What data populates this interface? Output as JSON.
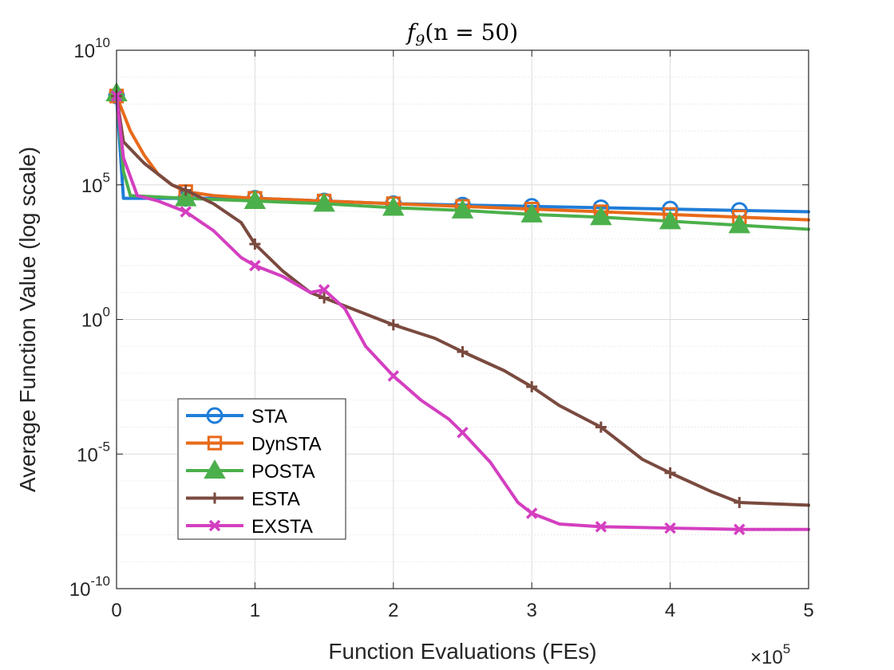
{
  "chart_data": {
    "type": "line",
    "title": "f9(n = 50)",
    "title_parts": {
      "f": "f",
      "sub": "9",
      "rest": "(n = 50)"
    },
    "xlabel": "Function Evaluations (FEs)",
    "ylabel": "Average Function Value (log scale)",
    "x_multiplier": {
      "base": "×10",
      "exp": "5"
    },
    "xlim": [
      0,
      5
    ],
    "ylim_log10": [
      -10,
      10
    ],
    "x_ticks": [
      "0",
      "1",
      "2",
      "3",
      "4",
      "5"
    ],
    "y_ticks": [
      {
        "value": 10,
        "base": "10",
        "exp": "10"
      },
      {
        "value": 5,
        "base": "10",
        "exp": "5"
      },
      {
        "value": 0,
        "base": "10",
        "exp": "0"
      },
      {
        "value": -5,
        "base": "10",
        "exp": "-5"
      },
      {
        "value": -10,
        "base": "10",
        "exp": "-10"
      }
    ],
    "grid": true,
    "legend_position": "lower-left",
    "series": [
      {
        "name": "STA",
        "color": "#1f7dd8",
        "marker": "circle",
        "x": [
          0,
          0.05,
          0.5,
          1,
          1.5,
          2,
          2.5,
          3,
          3.5,
          4,
          4.5,
          5
        ],
        "log10_y": [
          8.3,
          4.5,
          4.5,
          4.5,
          4.4,
          4.3,
          4.25,
          4.2,
          4.15,
          4.1,
          4.05,
          4.0
        ]
      },
      {
        "name": "DynSTA",
        "color": "#e86a1a",
        "marker": "square",
        "x": [
          0,
          0.1,
          0.2,
          0.3,
          0.4,
          0.5,
          0.7,
          1,
          1.5,
          2,
          2.5,
          3,
          3.5,
          4,
          4.5,
          5
        ],
        "log10_y": [
          8.3,
          7.0,
          6.1,
          5.4,
          5.0,
          4.75,
          4.6,
          4.5,
          4.4,
          4.3,
          4.2,
          4.1,
          4.0,
          3.9,
          3.8,
          3.7
        ]
      },
      {
        "name": "POSTA",
        "color": "#4bb04b",
        "marker": "triangle",
        "x": [
          0,
          0.05,
          0.1,
          0.5,
          1,
          1.5,
          2,
          2.5,
          3,
          3.5,
          4,
          4.5,
          5
        ],
        "log10_y": [
          8.4,
          5.5,
          4.6,
          4.5,
          4.4,
          4.3,
          4.15,
          4.05,
          3.9,
          3.8,
          3.65,
          3.5,
          3.35
        ]
      },
      {
        "name": "ESTA",
        "color": "#7a4a3f",
        "marker": "plus",
        "x": [
          0,
          0.05,
          0.2,
          0.4,
          0.5,
          0.7,
          0.9,
          1,
          1.2,
          1.4,
          1.5,
          1.7,
          2,
          2.3,
          2.5,
          2.8,
          3,
          3.2,
          3.5,
          3.8,
          4,
          4.3,
          4.5,
          5
        ],
        "log10_y": [
          8.3,
          6.6,
          5.8,
          5.0,
          4.8,
          4.3,
          3.6,
          2.8,
          1.8,
          1.0,
          0.8,
          0.4,
          -0.2,
          -0.7,
          -1.2,
          -1.9,
          -2.5,
          -3.2,
          -4.0,
          -5.2,
          -5.7,
          -6.4,
          -6.8,
          -6.9
        ]
      },
      {
        "name": "EXSTA",
        "color": "#d43fc0",
        "marker": "x",
        "x": [
          0,
          0.05,
          0.15,
          0.3,
          0.5,
          0.7,
          0.9,
          1,
          1.2,
          1.4,
          1.5,
          1.65,
          1.8,
          2,
          2.2,
          2.4,
          2.5,
          2.7,
          2.9,
          3,
          3.2,
          3.5,
          4,
          4.5,
          5
        ],
        "log10_y": [
          8.3,
          6.0,
          4.6,
          4.4,
          4.0,
          3.3,
          2.3,
          2.0,
          1.6,
          1.0,
          1.1,
          0.4,
          -1.0,
          -2.1,
          -3.0,
          -3.7,
          -4.2,
          -5.3,
          -6.8,
          -7.2,
          -7.6,
          -7.7,
          -7.75,
          -7.8,
          -7.8
        ]
      }
    ]
  }
}
